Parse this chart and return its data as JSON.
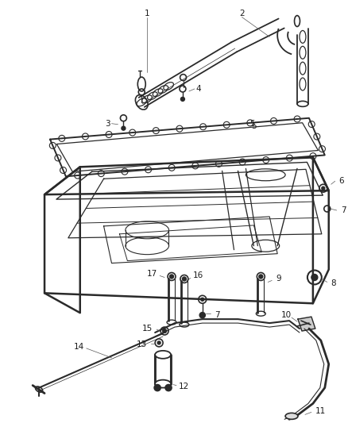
{
  "bg_color": "#ffffff",
  "fig_width": 4.38,
  "fig_height": 5.33,
  "dpi": 100,
  "line_color": "#2a2a2a",
  "label_color": "#1a1a1a",
  "label_fontsize": 7.5
}
